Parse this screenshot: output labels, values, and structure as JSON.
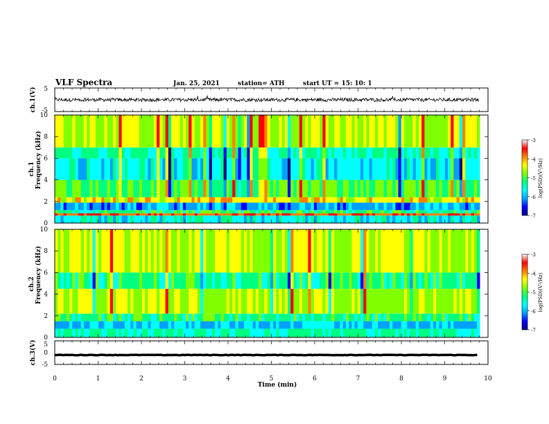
{
  "header": {
    "title": "VLF Spectra",
    "date": "Jan. 25, 2021",
    "station": "station= ATH",
    "start": "start  UT =   15: 10: 1"
  },
  "colors": {
    "spectrum_scale": [
      "#000080",
      "#0000ff",
      "#00a0ff",
      "#00ffff",
      "#00ff80",
      "#80ff00",
      "#ffff00",
      "#ff8000",
      "#ff0000",
      "#ffffff"
    ],
    "trace": "#000000"
  },
  "chart_data": [
    {
      "type": "line",
      "name": "ch1-waveform",
      "ylabel": "ch.1(V)",
      "ylim": [
        -5,
        5
      ],
      "yticks": [
        "5",
        "-5"
      ],
      "xlim": [
        0,
        10
      ],
      "data_xmax": 9.8,
      "baseline": 0,
      "noise_amplitude": 1.5
    },
    {
      "type": "heatmap",
      "name": "ch1-spectrogram",
      "ylabel": "ch.1\nFrequency  (kHz)",
      "ylabel_lines": [
        "ch.1",
        "Frequency  (kHz)"
      ],
      "ylim": [
        0,
        10
      ],
      "yticks": [
        "0",
        "2",
        "4",
        "6",
        "8",
        "10"
      ],
      "xlim": [
        0,
        10
      ],
      "data_xmax": 9.8,
      "colorbar": {
        "label": "log(PSD)(V²/Hz)",
        "range": [
          -7,
          -3
        ],
        "ticks": [
          "-3",
          "-4",
          "-5",
          "-6",
          "-7"
        ]
      },
      "bands_kHz": [
        {
          "f0": 0.0,
          "f1": 0.7,
          "level": -5.5
        },
        {
          "f0": 0.7,
          "f1": 0.9,
          "level": -3.3
        },
        {
          "f0": 0.9,
          "f1": 1.2,
          "level": -5.0
        },
        {
          "f0": 1.2,
          "f1": 1.9,
          "level": -6.0
        },
        {
          "f0": 1.9,
          "f1": 2.4,
          "level": -4.0
        },
        {
          "f0": 2.4,
          "f1": 4.0,
          "level": -4.8
        },
        {
          "f0": 4.0,
          "f1": 6.0,
          "level": -5.5
        },
        {
          "f0": 6.0,
          "f1": 7.0,
          "level": -5.2
        },
        {
          "f0": 7.0,
          "f1": 10.0,
          "level": -4.3
        }
      ]
    },
    {
      "type": "heatmap",
      "name": "ch2-spectrogram",
      "ylabel": "ch.2\nFrequency  (kHz)",
      "ylabel_lines": [
        "ch.2",
        "Frequency  (kHz)"
      ],
      "ylim": [
        0,
        10
      ],
      "yticks": [
        "0",
        "2",
        "4",
        "6",
        "8",
        "10"
      ],
      "xlim": [
        0,
        10
      ],
      "data_xmax": 9.8,
      "colorbar": {
        "label": "log(PSD)(V²/Hz)",
        "range": [
          -7,
          -3
        ],
        "ticks": [
          "-3",
          "-4",
          "-5",
          "-6",
          "-7"
        ]
      },
      "bands_kHz": [
        {
          "f0": 0.0,
          "f1": 0.8,
          "level": -5.2
        },
        {
          "f0": 0.8,
          "f1": 1.5,
          "level": -5.8
        },
        {
          "f0": 1.5,
          "f1": 2.2,
          "level": -5.0
        },
        {
          "f0": 2.2,
          "f1": 4.5,
          "level": -4.3
        },
        {
          "f0": 4.5,
          "f1": 6.0,
          "level": -5.0
        },
        {
          "f0": 6.0,
          "f1": 10.0,
          "level": -4.2
        }
      ]
    },
    {
      "type": "line",
      "name": "ch3-waveform",
      "ylabel": "ch.3(V)",
      "ylim": [
        -5,
        5
      ],
      "yticks": [
        "5",
        "0",
        "-5"
      ],
      "xlim": [
        0,
        10
      ],
      "data_xmax": 9.8,
      "baseline": -1,
      "noise_amplitude": 0.2
    }
  ],
  "x_axis": {
    "label": "Time  (min)",
    "ticks": [
      "0",
      "1",
      "2",
      "3",
      "4",
      "5",
      "6",
      "7",
      "8",
      "9",
      "10"
    ]
  }
}
